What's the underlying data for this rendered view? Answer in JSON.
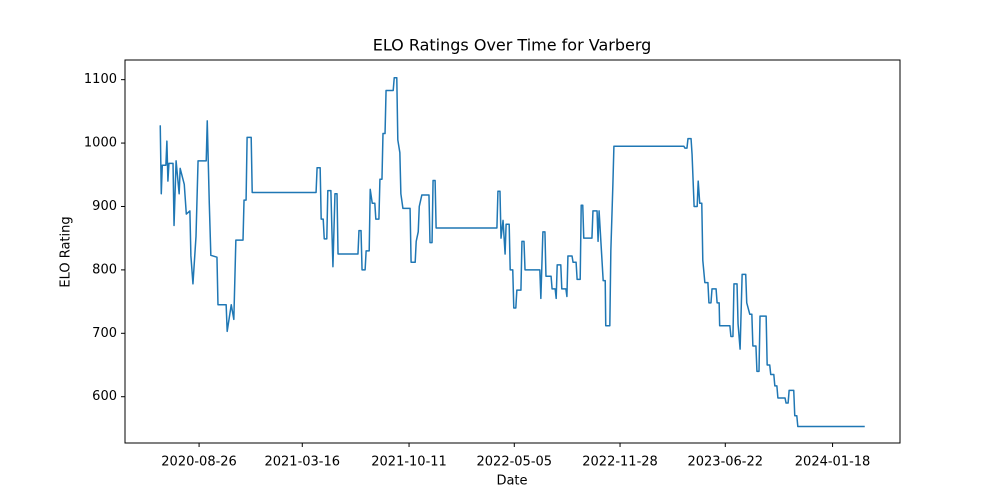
{
  "chart_data": {
    "type": "line",
    "title": "ELO Ratings Over Time for Varberg",
    "x_label": "Date",
    "y_label": "ELO Rating",
    "color": "#1f77b4",
    "x": [
      "2020-06-11",
      "2020-06-13",
      "2020-06-15",
      "2020-06-22",
      "2020-06-24",
      "2020-06-26",
      "2020-06-28",
      "2020-07-06",
      "2020-07-08",
      "2020-07-12",
      "2020-07-18",
      "2020-07-20",
      "2020-07-28",
      "2020-08-01",
      "2020-08-08",
      "2020-08-10",
      "2020-08-14",
      "2020-08-20",
      "2020-08-24",
      "2020-09-09",
      "2020-09-11",
      "2020-09-15",
      "2020-09-18",
      "2020-09-30",
      "2020-10-02",
      "2020-10-18",
      "2020-10-20",
      "2020-10-28",
      "2020-11-02",
      "2020-11-06",
      "2020-11-20",
      "2020-11-22",
      "2020-11-26",
      "2020-11-28",
      "2020-12-06",
      "2020-12-08",
      "2021-04-12",
      "2021-04-14",
      "2021-04-20",
      "2021-04-22",
      "2021-04-26",
      "2021-04-28",
      "2021-05-03",
      "2021-05-05",
      "2021-05-11",
      "2021-05-13",
      "2021-05-15",
      "2021-05-19",
      "2021-05-23",
      "2021-05-25",
      "2021-07-03",
      "2021-07-05",
      "2021-07-09",
      "2021-07-11",
      "2021-07-17",
      "2021-07-19",
      "2021-07-25",
      "2021-07-27",
      "2021-07-31",
      "2021-08-05",
      "2021-08-07",
      "2021-08-13",
      "2021-08-15",
      "2021-08-19",
      "2021-08-21",
      "2021-08-25",
      "2021-08-27",
      "2021-09-10",
      "2021-09-12",
      "2021-09-17",
      "2021-09-19",
      "2021-09-23",
      "2021-09-25",
      "2021-09-29",
      "2021-10-13",
      "2021-10-15",
      "2021-10-23",
      "2021-10-25",
      "2021-10-29",
      "2021-10-31",
      "2021-11-05",
      "2021-11-19",
      "2021-11-21",
      "2021-11-25",
      "2021-11-27",
      "2021-12-01",
      "2021-12-03",
      "2022-04-01",
      "2022-04-03",
      "2022-04-07",
      "2022-04-09",
      "2022-04-13",
      "2022-04-17",
      "2022-04-19",
      "2022-04-25",
      "2022-04-27",
      "2022-05-02",
      "2022-05-04",
      "2022-05-08",
      "2022-05-10",
      "2022-05-18",
      "2022-05-20",
      "2022-05-24",
      "2022-05-26",
      "2022-06-24",
      "2022-06-26",
      "2022-06-30",
      "2022-07-04",
      "2022-07-06",
      "2022-07-16",
      "2022-07-18",
      "2022-07-24",
      "2022-07-26",
      "2022-07-28",
      "2022-08-04",
      "2022-08-06",
      "2022-08-14",
      "2022-08-16",
      "2022-08-18",
      "2022-08-26",
      "2022-08-28",
      "2022-09-03",
      "2022-09-05",
      "2022-09-11",
      "2022-09-13",
      "2022-09-16",
      "2022-09-18",
      "2022-10-04",
      "2022-10-06",
      "2022-10-14",
      "2022-10-16",
      "2022-10-18",
      "2022-10-22",
      "2022-10-26",
      "2022-10-30",
      "2022-10-31",
      "2022-11-08",
      "2022-11-10",
      "2022-11-14",
      "2022-11-16",
      "2023-04-02",
      "2023-04-04",
      "2023-04-08",
      "2023-04-10",
      "2023-04-16",
      "2023-04-18",
      "2023-04-22",
      "2023-04-28",
      "2023-04-30",
      "2023-05-03",
      "2023-05-07",
      "2023-05-09",
      "2023-05-13",
      "2023-05-19",
      "2023-05-21",
      "2023-05-25",
      "2023-05-27",
      "2023-06-04",
      "2023-06-06",
      "2023-06-10",
      "2023-06-11",
      "2023-07-01",
      "2023-07-03",
      "2023-07-07",
      "2023-07-09",
      "2023-07-15",
      "2023-07-17",
      "2023-07-21",
      "2023-07-25",
      "2023-08-01",
      "2023-08-03",
      "2023-08-09",
      "2023-08-13",
      "2023-08-15",
      "2023-08-21",
      "2023-08-23",
      "2023-08-27",
      "2023-08-29",
      "2023-09-10",
      "2023-09-12",
      "2023-09-17",
      "2023-09-19",
      "2023-09-25",
      "2023-09-27",
      "2023-10-01",
      "2023-10-03",
      "2023-10-17",
      "2023-10-19",
      "2023-10-23",
      "2023-10-25",
      "2023-11-03",
      "2023-11-05",
      "2023-11-09",
      "2023-11-11",
      "2024-03-21"
    ],
    "values": [
      1028,
      920,
      965,
      965,
      1003,
      940,
      968,
      968,
      870,
      972,
      920,
      960,
      935,
      888,
      893,
      822,
      778,
      853,
      972,
      972,
      1035,
      905,
      823,
      820,
      745,
      745,
      703,
      745,
      722,
      847,
      847,
      910,
      910,
      1009,
      1009,
      922,
      922,
      961,
      961,
      880,
      880,
      849,
      849,
      925,
      925,
      862,
      805,
      920,
      920,
      825,
      825,
      862,
      862,
      800,
      800,
      830,
      830,
      927,
      905,
      905,
      880,
      880,
      943,
      943,
      1015,
      1015,
      1083,
      1083,
      1103,
      1103,
      1005,
      985,
      920,
      897,
      897,
      812,
      812,
      845,
      860,
      900,
      918,
      918,
      843,
      843,
      941,
      941,
      866,
      866,
      924,
      924,
      850,
      878,
      825,
      872,
      872,
      800,
      800,
      740,
      740,
      768,
      768,
      845,
      845,
      800,
      800,
      755,
      860,
      860,
      790,
      790,
      770,
      770,
      755,
      808,
      808,
      770,
      770,
      758,
      822,
      822,
      812,
      812,
      785,
      785,
      902,
      902,
      850,
      850,
      893,
      893,
      845,
      893,
      838,
      783,
      783,
      712,
      712,
      830,
      935,
      995,
      995,
      992,
      992,
      1007,
      1007,
      982,
      900,
      900,
      940,
      905,
      905,
      815,
      780,
      780,
      748,
      748,
      770,
      770,
      748,
      748,
      712,
      712,
      695,
      695,
      778,
      778,
      715,
      675,
      793,
      793,
      748,
      730,
      730,
      680,
      680,
      640,
      640,
      727,
      727,
      650,
      650,
      635,
      635,
      617,
      617,
      598,
      598,
      590,
      590,
      610,
      610,
      570,
      570,
      553,
      553
    ],
    "xlim": [
      "2020-04-03",
      "2024-05-29"
    ],
    "xticks": [
      "2020-08-26",
      "2021-03-16",
      "2021-10-11",
      "2022-05-05",
      "2022-11-28",
      "2023-06-22",
      "2024-01-18"
    ],
    "ylim": [
      527,
      1131
    ],
    "yticks": [
      600,
      700,
      800,
      900,
      1000,
      1100
    ]
  }
}
